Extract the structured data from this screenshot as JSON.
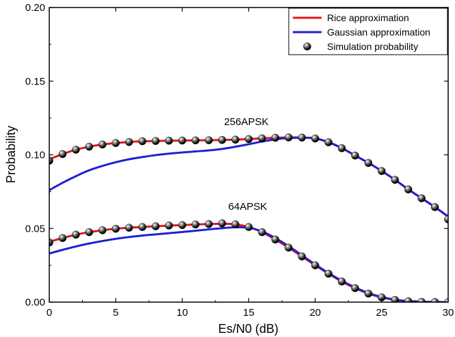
{
  "chart_data": {
    "type": "line",
    "xlabel": "Es/N0 (dB)",
    "ylabel": "Probability",
    "xlim": [
      0,
      30
    ],
    "ylim": [
      0,
      0.2
    ],
    "x_ticks": [
      0,
      5,
      10,
      15,
      20,
      25,
      30
    ],
    "x_tick_labels": [
      "0",
      "5",
      "10",
      "15",
      "20",
      "25",
      "30"
    ],
    "y_ticks": [
      0,
      0.05,
      0.1,
      0.15,
      0.2
    ],
    "y_tick_labels": [
      "0.00",
      "0.05",
      "0.10",
      "0.15",
      "0.20"
    ],
    "grid": false,
    "legend_position": "top-right",
    "legend": [
      {
        "label": "Rice approximation",
        "color": "#e8141b",
        "marker": "line"
      },
      {
        "label": "Gaussian approximation",
        "color": "#1f1fd6",
        "marker": "line"
      },
      {
        "label": "Simulation probability",
        "color": "#1a1a1a",
        "marker": "sphere"
      }
    ],
    "annotations": [
      {
        "text": "256APSK",
        "x": 18.4,
        "y": 0.1235
      },
      {
        "text": "64APSK",
        "x": 15.3,
        "y": 0.0635
      }
    ],
    "series": [
      {
        "name": "Rice approximation",
        "group": "256APSK",
        "color": "#e8141b",
        "x": [
          0,
          1,
          2,
          3,
          4,
          5,
          6,
          7,
          8,
          9,
          10,
          11,
          12,
          13,
          14,
          15,
          16,
          17,
          18,
          19,
          20,
          21,
          22,
          23,
          24,
          25,
          26,
          27,
          28,
          29,
          30
        ],
        "y": [
          0.097,
          0.1005,
          0.1035,
          0.1055,
          0.107,
          0.108,
          0.1087,
          0.1092,
          0.1094,
          0.1096,
          0.1097,
          0.1098,
          0.1099,
          0.1101,
          0.1103,
          0.1107,
          0.1112,
          0.1116,
          0.1118,
          0.1117,
          0.1111,
          0.1085,
          0.1045,
          0.0995,
          0.0945,
          0.089,
          0.083,
          0.0765,
          0.0705,
          0.0645,
          0.058
        ]
      },
      {
        "name": "Gaussian approximation",
        "group": "256APSK",
        "color": "#1f1fd6",
        "x": [
          0,
          1,
          2,
          3,
          4,
          5,
          6,
          7,
          8,
          9,
          10,
          11,
          12,
          13,
          14,
          15,
          16,
          17,
          18,
          19,
          20,
          21,
          22,
          23,
          24,
          25,
          26,
          27,
          28,
          29,
          30
        ],
        "y": [
          0.076,
          0.081,
          0.0855,
          0.0895,
          0.0925,
          0.095,
          0.097,
          0.0985,
          0.0998,
          0.1008,
          0.1016,
          0.1023,
          0.103,
          0.104,
          0.1055,
          0.1072,
          0.109,
          0.1105,
          0.1114,
          0.1116,
          0.1112,
          0.1086,
          0.1046,
          0.0996,
          0.0946,
          0.0891,
          0.0831,
          0.0766,
          0.0706,
          0.0646,
          0.0581
        ]
      },
      {
        "name": "Simulation probability",
        "group": "256APSK",
        "color": "#1a1a1a",
        "x": [
          0,
          1,
          2,
          3,
          4,
          5,
          6,
          7,
          8,
          9,
          10,
          11,
          12,
          13,
          14,
          15,
          16,
          17,
          18,
          19,
          20,
          21,
          22,
          23,
          24,
          25,
          26,
          27,
          28,
          29,
          30
        ],
        "y": [
          0.096,
          0.1005,
          0.1035,
          0.1055,
          0.107,
          0.108,
          0.1087,
          0.1092,
          0.1094,
          0.1096,
          0.1097,
          0.1098,
          0.1099,
          0.1101,
          0.1103,
          0.1107,
          0.1112,
          0.1116,
          0.1118,
          0.1117,
          0.1111,
          0.1085,
          0.1045,
          0.0995,
          0.0945,
          0.089,
          0.083,
          0.0765,
          0.0705,
          0.0645,
          0.0562
        ]
      },
      {
        "name": "Rice approximation",
        "group": "64APSK",
        "color": "#e8141b",
        "x": [
          0,
          1,
          2,
          3,
          4,
          5,
          6,
          7,
          8,
          9,
          10,
          11,
          12,
          13,
          14,
          15,
          16,
          17,
          18,
          19,
          20,
          21,
          22,
          23,
          24,
          25,
          26,
          27,
          28,
          29,
          30
        ],
        "y": [
          0.041,
          0.0435,
          0.0458,
          0.0475,
          0.0488,
          0.0498,
          0.0505,
          0.051,
          0.0515,
          0.052,
          0.0523,
          0.0527,
          0.053,
          0.0532,
          0.0528,
          0.051,
          0.0475,
          0.0425,
          0.037,
          0.031,
          0.025,
          0.0193,
          0.014,
          0.0095,
          0.0058,
          0.0032,
          0.0015,
          0.0006,
          0.0002,
          0.0001,
          0.0
        ]
      },
      {
        "name": "Gaussian approximation",
        "group": "64APSK",
        "color": "#1f1fd6",
        "x": [
          0,
          1,
          2,
          3,
          4,
          5,
          6,
          7,
          8,
          9,
          10,
          11,
          12,
          13,
          14,
          15,
          16,
          17,
          18,
          19,
          20,
          21,
          22,
          23,
          24,
          25,
          26,
          27,
          28,
          29,
          30
        ],
        "y": [
          0.033,
          0.0355,
          0.0378,
          0.0398,
          0.0415,
          0.043,
          0.0442,
          0.0452,
          0.046,
          0.0468,
          0.0476,
          0.0485,
          0.0494,
          0.0502,
          0.0508,
          0.0505,
          0.048,
          0.0435,
          0.038,
          0.0318,
          0.0256,
          0.0198,
          0.0145,
          0.01,
          0.0062,
          0.0035,
          0.0017,
          0.0007,
          0.0003,
          0.0001,
          0.0
        ]
      },
      {
        "name": "Simulation probability",
        "group": "64APSK",
        "color": "#1a1a1a",
        "x": [
          0,
          1,
          2,
          3,
          4,
          5,
          6,
          7,
          8,
          9,
          10,
          11,
          12,
          13,
          14,
          15,
          16,
          17,
          18,
          19,
          20,
          21,
          22,
          23,
          24,
          25,
          26,
          27,
          28,
          29,
          30
        ],
        "y": [
          0.0405,
          0.0435,
          0.0458,
          0.0475,
          0.0488,
          0.0498,
          0.0505,
          0.051,
          0.0515,
          0.052,
          0.0523,
          0.0527,
          0.053,
          0.0535,
          0.0528,
          0.051,
          0.0475,
          0.0425,
          0.037,
          0.031,
          0.025,
          0.0193,
          0.014,
          0.0095,
          0.0058,
          0.0032,
          0.0015,
          0.0006,
          0.0002,
          0.0001,
          0.0
        ]
      }
    ]
  }
}
